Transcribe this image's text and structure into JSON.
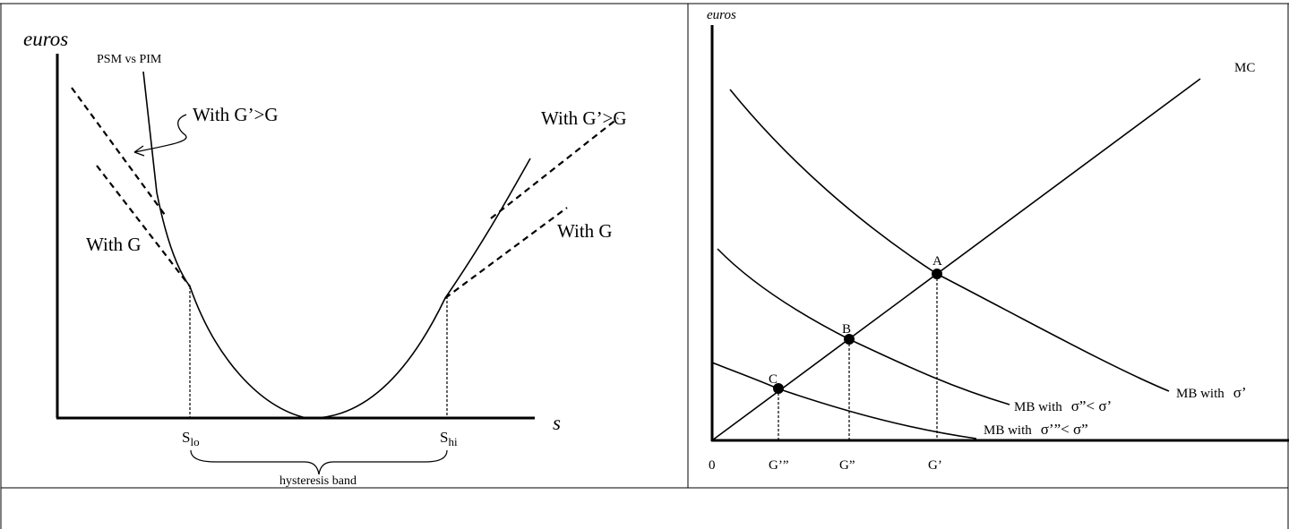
{
  "left_panel": {
    "y_label": "euros",
    "x_label": "s",
    "curve_label": "PSM vs PIM",
    "upper_left_label": "With G’>G",
    "lower_left_label": "With G",
    "upper_right_label": "With G’>G",
    "lower_right_label": "With G",
    "tick_lo": {
      "base": "S",
      "sub": "lo"
    },
    "tick_hi": {
      "base": "S",
      "sub": "hi"
    },
    "band_label": "hysteresis band"
  },
  "right_panel": {
    "y_label": "euros",
    "origin_label": "0",
    "mc_label": "MC",
    "points": [
      "A",
      "B",
      "C"
    ],
    "mb1": {
      "text": "MB with",
      "sigma": "σ’"
    },
    "mb2": {
      "text": "MB with",
      "sigma": "σ”< σ’"
    },
    "mb3": {
      "text": "MB with",
      "sigma": "σ’”< σ”"
    },
    "x_ticks": [
      "G’”",
      "G”",
      "G’"
    ]
  }
}
